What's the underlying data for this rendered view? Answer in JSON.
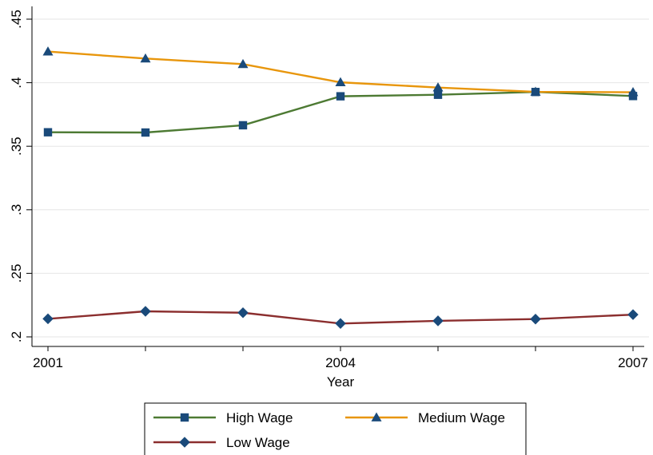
{
  "chart_data": {
    "type": "line",
    "title": "",
    "xlabel": "Year",
    "ylabel": "",
    "x": [
      2001,
      2002,
      2003,
      2004,
      2005,
      2006,
      2007
    ],
    "x_ticks": [
      2001,
      2004,
      2007
    ],
    "x_tick_labels": [
      "2001",
      "2004",
      "2007"
    ],
    "xlim": [
      2001,
      2007
    ],
    "y_ticks": [
      0.2,
      0.25,
      0.3,
      0.35,
      0.4,
      0.45
    ],
    "y_tick_labels": [
      ".2",
      ".25",
      ".3",
      ".35",
      ".4",
      ".45"
    ],
    "ylim": [
      0.2,
      0.45
    ],
    "grid": true,
    "legend_position": "bottom",
    "series": [
      {
        "name": "High Wage",
        "marker": "square",
        "color": "#4d7a33",
        "values": [
          0.361,
          0.3608,
          0.3665,
          0.3893,
          0.3905,
          0.3927,
          0.3895
        ]
      },
      {
        "name": "Medium Wage",
        "marker": "triangle",
        "color": "#e8960c",
        "values": [
          0.4245,
          0.419,
          0.4146,
          0.4003,
          0.3962,
          0.3928,
          0.3925
        ]
      },
      {
        "name": "Low Wage",
        "marker": "diamond",
        "color": "#8b2e2e",
        "values": [
          0.2142,
          0.2201,
          0.219,
          0.2105,
          0.2126,
          0.214,
          0.2175
        ]
      }
    ],
    "marker_color": "#1a4a7a"
  }
}
